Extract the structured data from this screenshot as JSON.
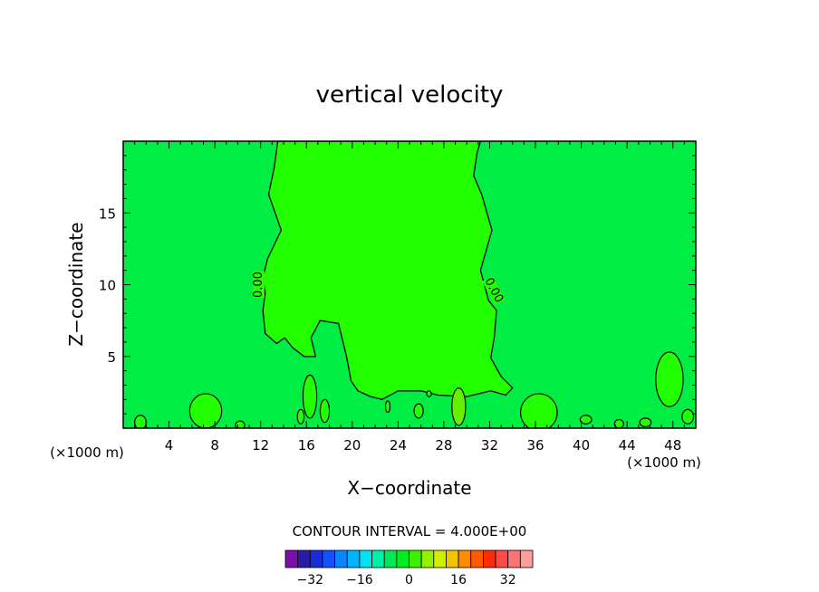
{
  "chart_data": {
    "type": "contour",
    "title": "vertical velocity",
    "xlabel": "X−coordinate",
    "ylabel": "Z−coordinate",
    "x_unit": "(×1000 m)",
    "xlim": [
      0,
      50
    ],
    "ylim": [
      0,
      20
    ],
    "x_ticks": [
      4,
      8,
      12,
      16,
      20,
      24,
      28,
      32,
      36,
      40,
      44,
      48
    ],
    "y_ticks": [
      5,
      10,
      15
    ],
    "contour_label": "0.00",
    "contour_interval_text": "CONTOUR INTERVAL = 4.000E+00",
    "colorbar": {
      "ticks": [
        "−32",
        "−16",
        "0",
        "16",
        "32"
      ],
      "tick_values": [
        -32,
        -16,
        0,
        16,
        32
      ],
      "range": [
        -40,
        40
      ],
      "colors": [
        "#7b0fae",
        "#2a1aa8",
        "#1a2cd8",
        "#0f52ff",
        "#0b84ff",
        "#00b4ff",
        "#00e4f2",
        "#00f0a8",
        "#00e85a",
        "#00ee20",
        "#3cf000",
        "#96f000",
        "#d2ee00",
        "#f0c400",
        "#ff8c00",
        "#ff5a00",
        "#ff2a0a",
        "#ff4a4a",
        "#ff7272",
        "#ff9c9c"
      ]
    },
    "fill_colors": {
      "background": "#00ee44",
      "updraft_region": "#22ff00",
      "small_cell": "#66f000"
    },
    "zero_contour_left": [
      [
        13.5,
        20
      ],
      [
        13.2,
        18.2
      ],
      [
        12.7,
        16.3
      ],
      [
        13.8,
        13.8
      ],
      [
        12.6,
        11.8
      ],
      [
        12.2,
        10.5
      ],
      [
        12.4,
        9.4
      ],
      [
        12.2,
        8.2
      ],
      [
        12.4,
        6.6
      ],
      [
        13.4,
        5.9
      ],
      [
        14.1,
        6.3
      ],
      [
        14.8,
        5.6
      ],
      [
        15.8,
        5.0
      ],
      [
        16.8,
        5.0
      ],
      [
        16.4,
        6.3
      ],
      [
        17.2,
        7.5
      ],
      [
        18.8,
        7.3
      ],
      [
        19.5,
        5.0
      ],
      [
        19.9,
        3.3
      ],
      [
        20.5,
        2.6
      ],
      [
        21.6,
        2.2
      ],
      [
        22.6,
        2.0
      ],
      [
        24,
        2.6
      ],
      [
        26,
        2.6
      ],
      [
        27.5,
        2.3
      ],
      [
        30,
        2.2
      ],
      [
        32.1,
        2.6
      ],
      [
        33.4,
        2.3
      ],
      [
        34.0,
        2.8
      ],
      [
        33.0,
        3.6
      ],
      [
        32.1,
        4.9
      ],
      [
        32.4,
        6.3
      ],
      [
        32.6,
        8.2
      ],
      [
        31.9,
        8.9
      ],
      [
        31.2,
        11.0
      ],
      [
        32.2,
        13.8
      ],
      [
        31.3,
        16.3
      ],
      [
        30.6,
        17.6
      ],
      [
        30.9,
        19.2
      ],
      [
        31.2,
        20
      ]
    ],
    "small_contours": [
      {
        "cx": 29.3,
        "cy": 1.5,
        "rx": 0.6,
        "ry": 1.3
      },
      {
        "cx": 37.1,
        "cy": 0.9,
        "rx": 0.3,
        "ry": 0.4
      },
      {
        "cx": 16.3,
        "cy": 2.2,
        "rx": 0.6,
        "ry": 1.5
      },
      {
        "cx": 7.2,
        "cy": 1.2,
        "rx": 1.4,
        "ry": 1.2
      },
      {
        "cx": 36.3,
        "cy": 1.1,
        "rx": 1.6,
        "ry": 1.3
      },
      {
        "cx": 47.7,
        "cy": 3.4,
        "rx": 1.2,
        "ry": 1.9
      },
      {
        "cx": 1.5,
        "cy": 0.4,
        "rx": 0.5,
        "ry": 0.5
      },
      {
        "cx": 10.2,
        "cy": 0.2,
        "rx": 0.4,
        "ry": 0.3
      },
      {
        "cx": 15.5,
        "cy": 0.8,
        "rx": 0.3,
        "ry": 0.5
      },
      {
        "cx": 17.6,
        "cy": 1.2,
        "rx": 0.4,
        "ry": 0.8
      },
      {
        "cx": 23.1,
        "cy": 1.5,
        "rx": 0.2,
        "ry": 0.4
      },
      {
        "cx": 25.8,
        "cy": 1.2,
        "rx": 0.4,
        "ry": 0.5
      },
      {
        "cx": 26.7,
        "cy": 2.4,
        "rx": 0.2,
        "ry": 0.2
      },
      {
        "cx": 40.4,
        "cy": 0.6,
        "rx": 0.5,
        "ry": 0.3
      },
      {
        "cx": 43.3,
        "cy": 0.3,
        "rx": 0.4,
        "ry": 0.3
      },
      {
        "cx": 45.6,
        "cy": 0.4,
        "rx": 0.5,
        "ry": 0.3
      },
      {
        "cx": 49.3,
        "cy": 0.8,
        "rx": 0.5,
        "ry": 0.5
      }
    ]
  }
}
